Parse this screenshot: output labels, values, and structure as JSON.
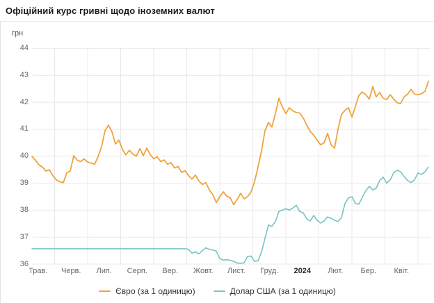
{
  "header": {
    "title": "Офіційний курс гривні щодо іноземних валют"
  },
  "chart_data": {
    "type": "line",
    "title": "Офіційний курс гривні щодо іноземних валют",
    "ylabel": "грн",
    "xlabel": "",
    "ylim": [
      36,
      44
    ],
    "grid": true,
    "legend_position": "bottom",
    "y_ticks": [
      44,
      43,
      42,
      41,
      40,
      39,
      38,
      37,
      36
    ],
    "x_tick_labels": [
      {
        "label": "Трав.",
        "bold": false
      },
      {
        "label": "Черв.",
        "bold": false
      },
      {
        "label": "Лип.",
        "bold": false
      },
      {
        "label": "Серп.",
        "bold": false
      },
      {
        "label": "Вер.",
        "bold": false
      },
      {
        "label": "Жовт.",
        "bold": false
      },
      {
        "label": "Лист.",
        "bold": false
      },
      {
        "label": "Груд.",
        "bold": false
      },
      {
        "label": "2024",
        "bold": true
      },
      {
        "label": "Лют.",
        "bold": false
      },
      {
        "label": "Бер.",
        "bold": false
      },
      {
        "label": "Квіт.",
        "bold": false
      }
    ],
    "series": [
      {
        "name": "Євро (за 1 одиницю)",
        "color": "#efa33c",
        "values": [
          40.0,
          39.85,
          39.68,
          39.6,
          39.45,
          39.5,
          39.28,
          39.12,
          39.05,
          39.02,
          39.38,
          39.45,
          40.02,
          39.85,
          39.8,
          39.9,
          39.78,
          39.75,
          39.7,
          39.98,
          40.35,
          40.95,
          41.15,
          40.9,
          40.45,
          40.6,
          40.25,
          40.05,
          40.22,
          40.08,
          40.0,
          40.28,
          40.02,
          40.3,
          40.06,
          39.9,
          39.98,
          39.8,
          39.86,
          39.7,
          39.76,
          39.56,
          39.62,
          39.4,
          39.46,
          39.28,
          39.15,
          39.3,
          39.08,
          38.95,
          39.02,
          38.75,
          38.58,
          38.28,
          38.5,
          38.68,
          38.52,
          38.46,
          38.2,
          38.4,
          38.62,
          38.42,
          38.5,
          38.68,
          39.05,
          39.6,
          40.2,
          40.95,
          41.25,
          41.08,
          41.58,
          42.15,
          41.82,
          41.58,
          41.8,
          41.68,
          41.62,
          41.6,
          41.42,
          41.15,
          40.92,
          40.78,
          40.6,
          40.42,
          40.5,
          40.85,
          40.42,
          40.3,
          41.0,
          41.55,
          41.7,
          41.8,
          41.45,
          41.85,
          42.25,
          42.38,
          42.28,
          42.12,
          42.58,
          42.2,
          42.36,
          42.15,
          42.1,
          42.28,
          42.12,
          41.98,
          41.95,
          42.2,
          42.3,
          42.48,
          42.3,
          42.28,
          42.32,
          42.4,
          42.78
        ]
      },
      {
        "name": "Долар США (за 1 одиницю)",
        "color": "#74c5c2",
        "values": [
          36.57,
          36.57,
          36.57,
          36.57,
          36.57,
          36.57,
          36.57,
          36.57,
          36.57,
          36.57,
          36.57,
          36.57,
          36.57,
          36.57,
          36.57,
          36.57,
          36.57,
          36.57,
          36.57,
          36.57,
          36.57,
          36.57,
          36.57,
          36.57,
          36.57,
          36.57,
          36.57,
          36.57,
          36.57,
          36.57,
          36.57,
          36.57,
          36.57,
          36.57,
          36.57,
          36.57,
          36.57,
          36.57,
          36.57,
          36.57,
          36.57,
          36.57,
          36.57,
          36.57,
          36.57,
          36.55,
          36.4,
          36.45,
          36.38,
          36.5,
          36.6,
          36.55,
          36.52,
          36.48,
          36.2,
          36.15,
          36.16,
          36.14,
          36.1,
          36.04,
          36.03,
          36.05,
          36.28,
          36.3,
          36.1,
          36.12,
          36.45,
          36.95,
          37.45,
          37.4,
          37.58,
          37.95,
          38.0,
          38.05,
          38.0,
          38.08,
          38.18,
          37.95,
          37.9,
          37.68,
          37.6,
          37.8,
          37.62,
          37.52,
          37.6,
          37.75,
          37.7,
          37.62,
          37.58,
          37.72,
          38.25,
          38.45,
          38.5,
          38.25,
          38.22,
          38.48,
          38.72,
          38.88,
          38.75,
          38.82,
          39.1,
          39.22,
          39.0,
          39.12,
          39.38,
          39.48,
          39.42,
          39.25,
          39.1,
          39.02,
          39.12,
          39.38,
          39.32,
          39.42,
          39.6
        ]
      }
    ]
  },
  "colors": {
    "grid": "#e8e8e8",
    "axis_text": "#666666",
    "euro": "#efa33c",
    "usd": "#74c5c2"
  }
}
